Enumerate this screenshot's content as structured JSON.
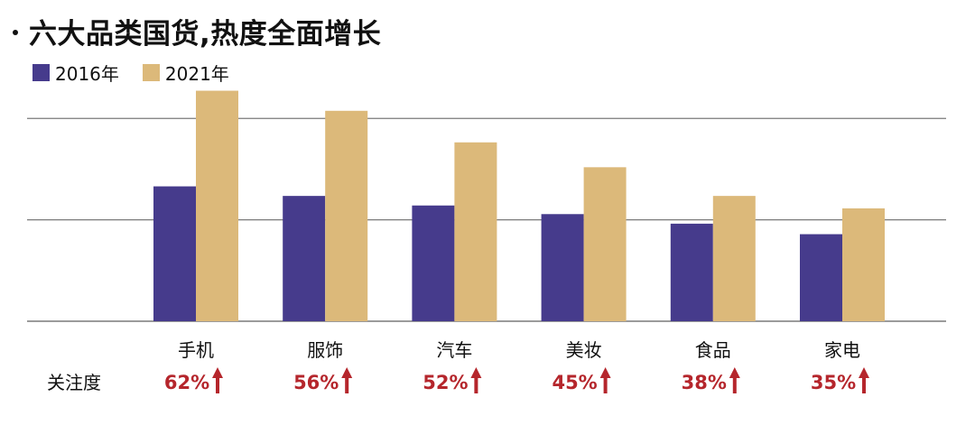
{
  "title": "六大品类国货,热度全面增长",
  "colors": {
    "series_2016": "#463b8c",
    "series_2021": "#dcb97a",
    "arrow": "#b5262c",
    "grid": "#7a7a7a"
  },
  "legend": [
    {
      "label": "2016年",
      "color": "#463b8c"
    },
    {
      "label": "2021年",
      "color": "#dcb97a"
    }
  ],
  "row_label": "关注度",
  "arrow_icon": "up-arrow-icon",
  "chart_data": {
    "type": "bar",
    "title": "六大品类国货,热度全面增长",
    "categories": [
      "手机",
      "服饰",
      "汽车",
      "美妆",
      "食品",
      "家电"
    ],
    "series": [
      {
        "name": "2016年",
        "values": [
          141,
          131,
          121,
          112,
          102,
          91
        ]
      },
      {
        "name": "2021年",
        "values": [
          241,
          220,
          187,
          161,
          131,
          118
        ]
      }
    ],
    "growth_labels": [
      "62%",
      "56%",
      "52%",
      "45%",
      "38%",
      "35%"
    ],
    "ylim": [
      0,
      300
    ],
    "grid": true,
    "y_gridlines": [
      0,
      106,
      212
    ],
    "legend_position": "top-left",
    "xlabel": "",
    "ylabel": ""
  }
}
